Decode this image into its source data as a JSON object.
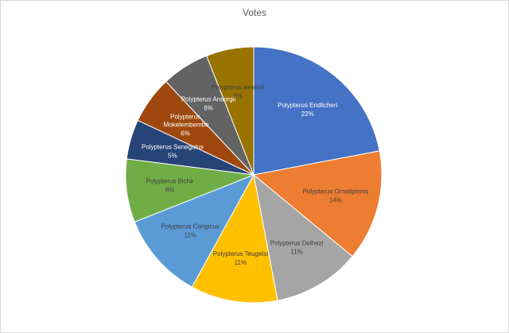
{
  "chart_data": {
    "type": "pie",
    "title": "Votes",
    "categories": [
      "Polypterus Endlicheri",
      "Polypterus Ornatipinnis",
      "Polypterus Delhezi",
      "Polypterus Teugelsi",
      "Polypterus Congicus",
      "Polypterus Bichir",
      "Polypterus Senegalus",
      "Polypterus Mokelembembe",
      "Polypterus Ansorgii",
      "Polypterus weeksii"
    ],
    "values": [
      22,
      14,
      11,
      11,
      11,
      8,
      5,
      6,
      6,
      6
    ],
    "value_labels": [
      "22%",
      "14%",
      "11%",
      "11%",
      "11%",
      "8%",
      "5%",
      "6%",
      "6%",
      "6%"
    ],
    "colors": [
      "#4472c4",
      "#ed7d31",
      "#a5a5a5",
      "#ffc000",
      "#5b9bd5",
      "#70ad47",
      "#264478",
      "#9e480e",
      "#636363",
      "#997300"
    ]
  }
}
